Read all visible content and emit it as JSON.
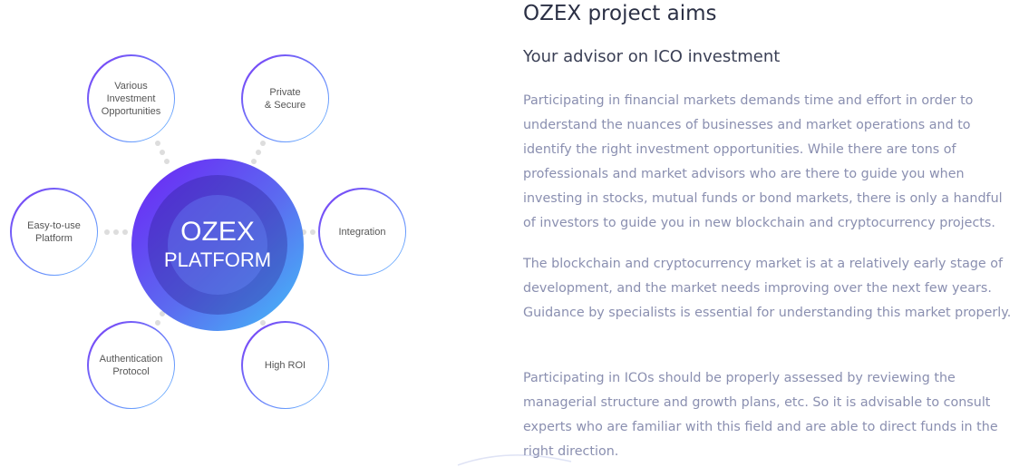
{
  "diagram": {
    "center": {
      "title": "OZEX",
      "subtitle": "PLATFORM"
    },
    "nodes": [
      "Various\nInvestment\nOpportunities",
      "Private\n& Secure",
      "Easy-to-use\nPlatform",
      "Integration",
      "Authentication\nProtocol",
      "High ROI"
    ]
  },
  "content": {
    "title": "OZEX project aims",
    "subtitle": "Your advisor on ICO investment",
    "paragraphs": [
      "Participating in financial markets demands time and effort in order to understand the nuances of businesses and market operations and to identify the right investment opportunities. While there are tons of professionals and market advisors who are there to guide you when investing in stocks, mutual funds or bond markets, there is only a handful of investors to guide you in new blockchain and cryptocurrency projects.",
      "The blockchain and cryptocurrency market is at a relatively early stage of development, and the market needs improving over the next few years. Guidance by specialists is essential for understanding this market properly.",
      "Participating in ICOs should be properly assessed by reviewing the managerial structure and growth plans, etc. So it is advisable to consult experts who are familiar with this field and are able to direct funds in the right direction."
    ]
  },
  "colors": {
    "heading": "#2b3045",
    "body": "#8a8fb0",
    "accent_start": "#6a2ff5",
    "accent_end": "#45b5f7"
  }
}
